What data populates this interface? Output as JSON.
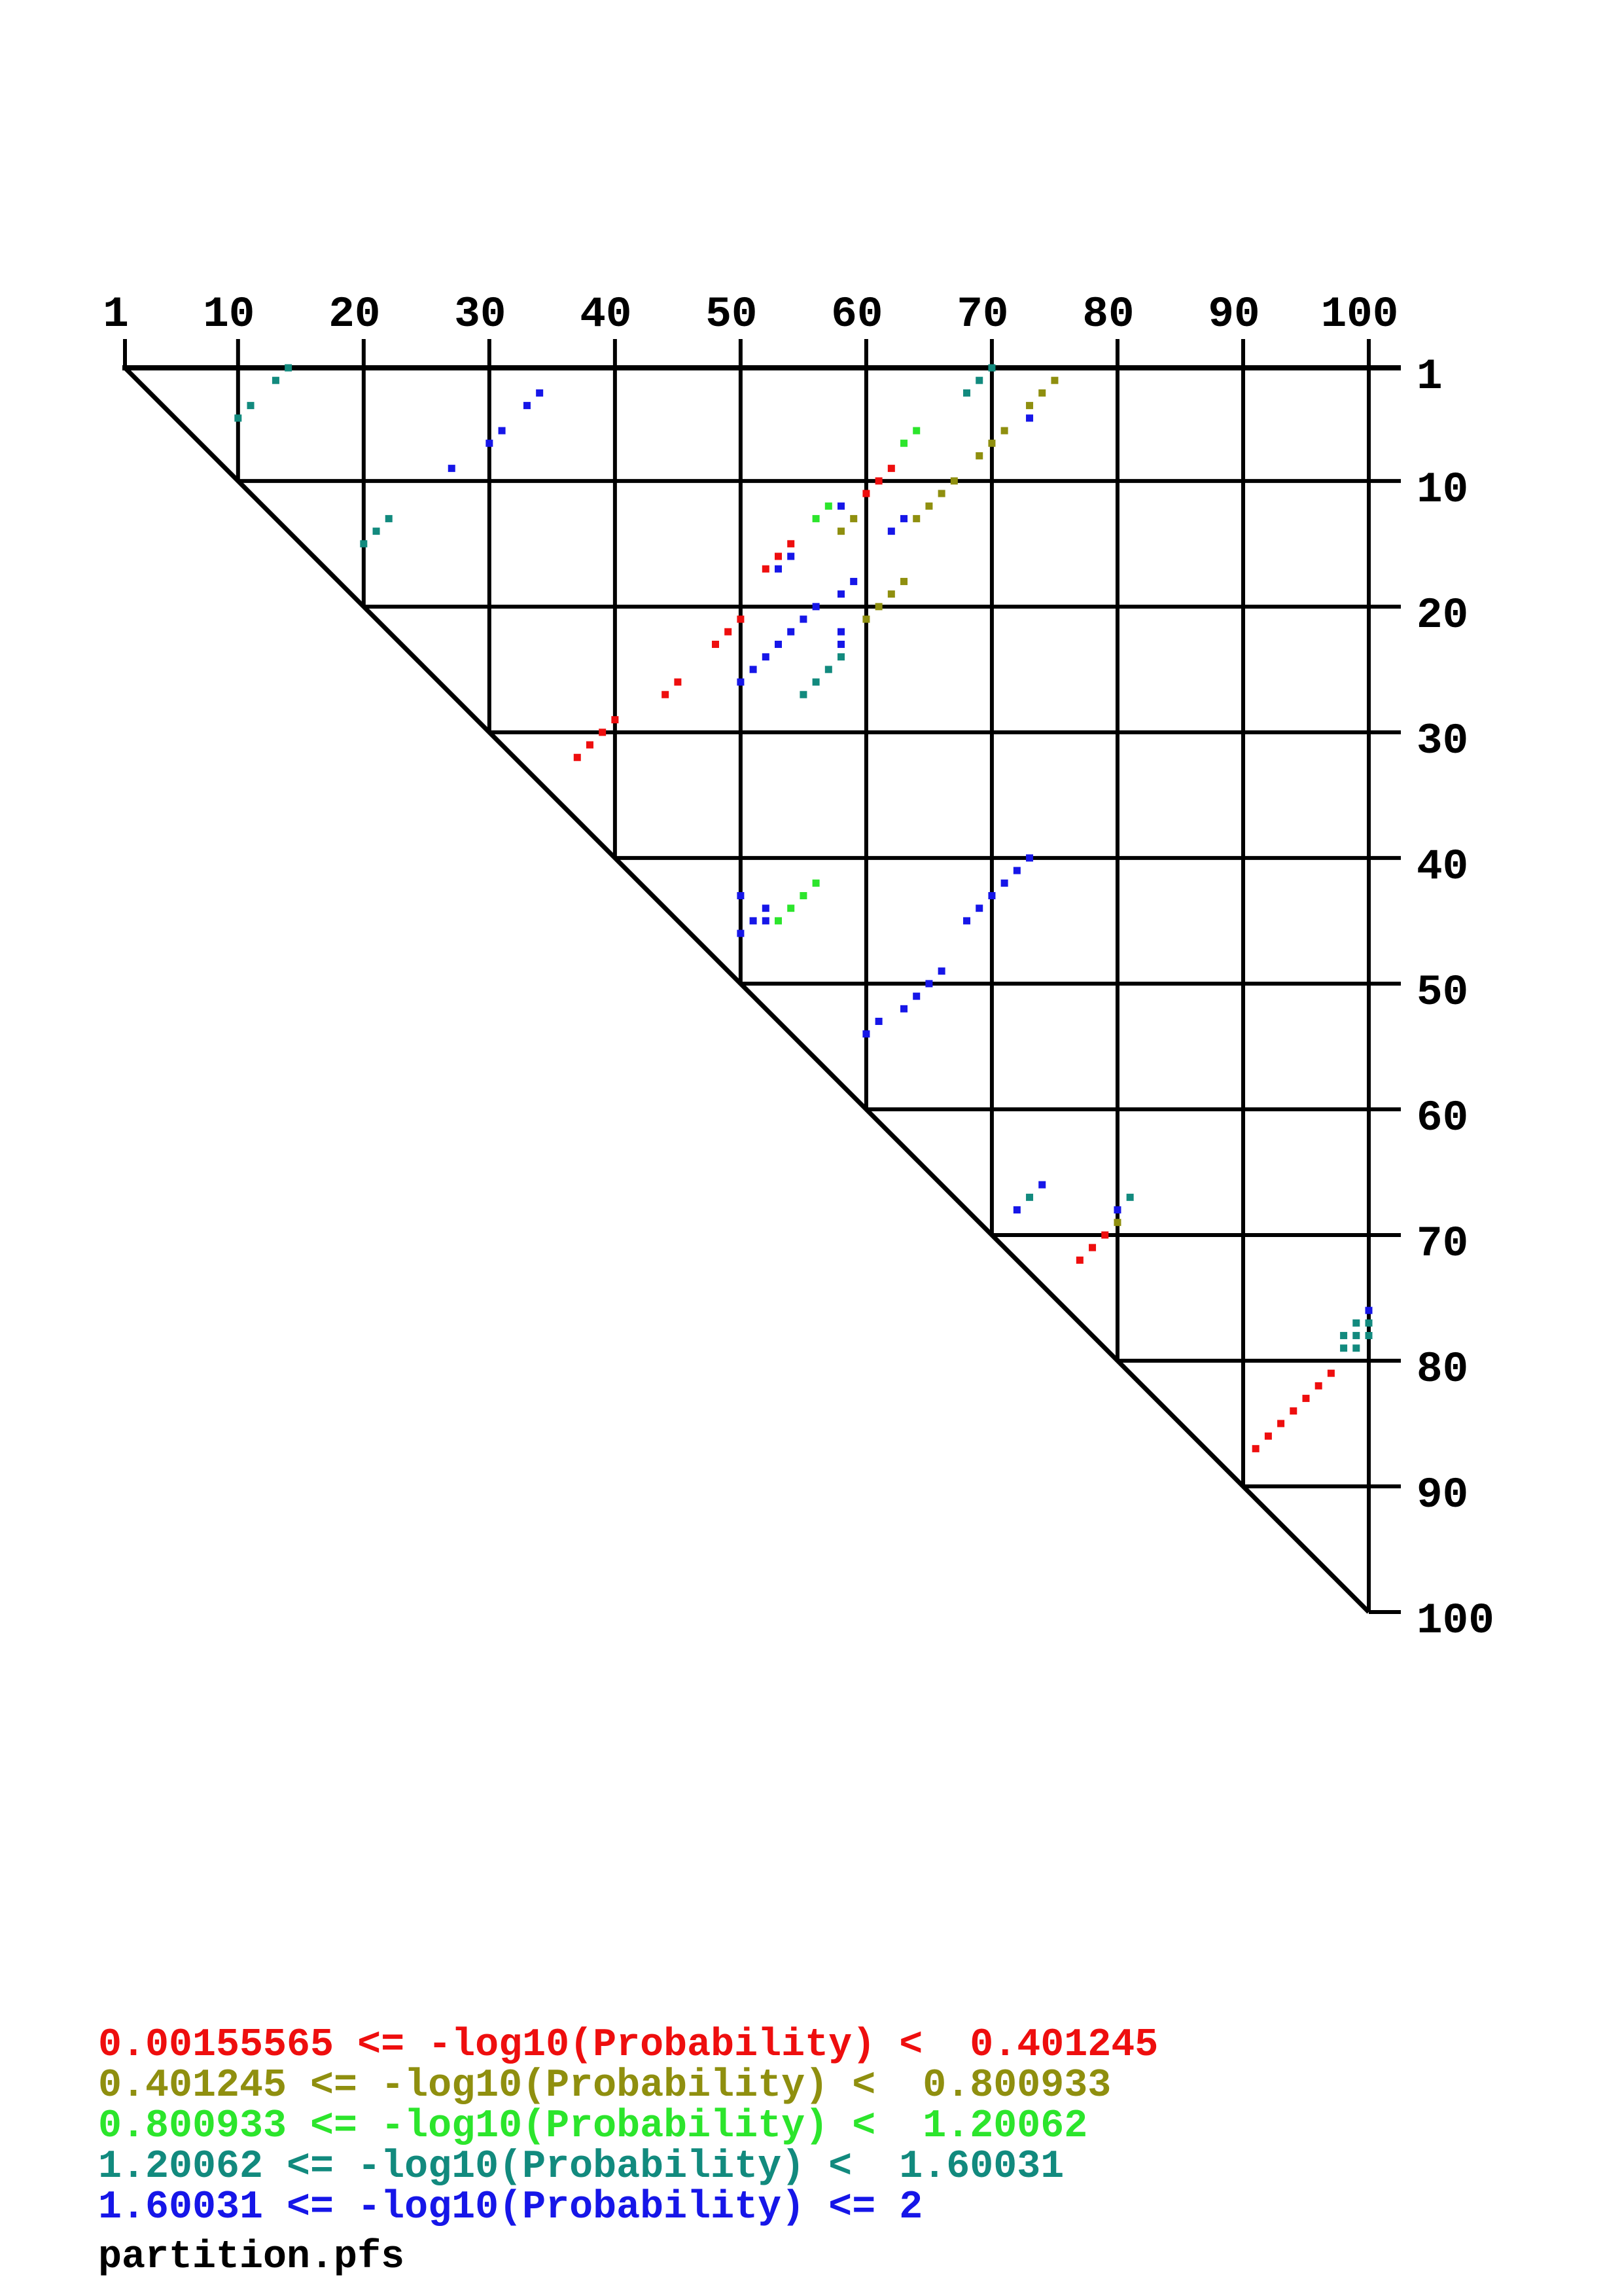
{
  "chart_data": {
    "type": "scatter",
    "subtype": "triangular-dot-plot",
    "title": "",
    "xlabel": "",
    "ylabel": "",
    "x_range": [
      1,
      100
    ],
    "y_range": [
      1,
      100
    ],
    "y_axis_direction": "down",
    "grid": true,
    "grid_positions": [
      1,
      10,
      20,
      30,
      40,
      50,
      60,
      70,
      80,
      90,
      100
    ],
    "x_tick_labels": [
      "1",
      "10",
      "20",
      "30",
      "40",
      "50",
      "60",
      "70",
      "80",
      "90",
      "100"
    ],
    "y_tick_labels": [
      "1",
      "10",
      "20",
      "30",
      "40",
      "50",
      "60",
      "70",
      "80",
      "90",
      "100"
    ],
    "legend_position": "bottom-left",
    "point_format": "[x_position, y_position]",
    "classes": [
      {
        "label": "0.00155565 <= -log10(Probability) <  0.401245",
        "color": "#ee0e0e",
        "points": [
          [
            62,
            9
          ],
          [
            61,
            10
          ],
          [
            60,
            11
          ],
          [
            54,
            15
          ],
          [
            53,
            16
          ],
          [
            52,
            17
          ],
          [
            50,
            21
          ],
          [
            49,
            22
          ],
          [
            48,
            23
          ],
          [
            45,
            26
          ],
          [
            44,
            27
          ],
          [
            40,
            29
          ],
          [
            39,
            30
          ],
          [
            38,
            31
          ],
          [
            37,
            32
          ],
          [
            79,
            70
          ],
          [
            78,
            71
          ],
          [
            77,
            72
          ],
          [
            97,
            81
          ],
          [
            96,
            82
          ],
          [
            95,
            83
          ],
          [
            94,
            84
          ],
          [
            93,
            85
          ],
          [
            92,
            86
          ],
          [
            91,
            87
          ]
        ]
      },
      {
        "label": "0.401245 <= -log10(Probability) <  0.800933",
        "color": "#8f8f0f",
        "points": [
          [
            75,
            2
          ],
          [
            74,
            3
          ],
          [
            73,
            4
          ],
          [
            71,
            6
          ],
          [
            70,
            7
          ],
          [
            69,
            8
          ],
          [
            67,
            10
          ],
          [
            66,
            11
          ],
          [
            65,
            12
          ],
          [
            64,
            13
          ],
          [
            59,
            13
          ],
          [
            58,
            14
          ],
          [
            63,
            18
          ],
          [
            62,
            19
          ],
          [
            61,
            20
          ],
          [
            60,
            21
          ],
          [
            80,
            69
          ]
        ]
      },
      {
        "label": "0.800933 <= -log10(Probability) <  1.20062",
        "color": "#2ce52c",
        "points": [
          [
            64,
            6
          ],
          [
            63,
            7
          ],
          [
            57,
            12
          ],
          [
            56,
            13
          ],
          [
            56,
            42
          ],
          [
            55,
            43
          ],
          [
            54,
            44
          ],
          [
            53,
            45
          ]
        ]
      },
      {
        "label": "1.20062 <= -log10(Probability) <  1.60031",
        "color": "#128a7e",
        "points": [
          [
            14,
            1
          ],
          [
            13,
            2
          ],
          [
            11,
            4
          ],
          [
            10,
            5
          ],
          [
            70,
            1
          ],
          [
            69,
            2
          ],
          [
            68,
            3
          ],
          [
            22,
            13
          ],
          [
            21,
            14
          ],
          [
            20,
            15
          ],
          [
            58,
            24
          ],
          [
            57,
            25
          ],
          [
            56,
            26
          ],
          [
            55,
            27
          ],
          [
            73,
            67
          ],
          [
            81,
            67
          ],
          [
            99,
            77
          ],
          [
            100,
            77
          ],
          [
            98,
            78
          ],
          [
            99,
            78
          ],
          [
            100,
            78
          ],
          [
            98,
            79
          ],
          [
            99,
            79
          ]
        ]
      },
      {
        "label": "1.60031 <= -log10(Probability) <= 2",
        "color": "#1616e8",
        "points": [
          [
            34,
            3
          ],
          [
            33,
            4
          ],
          [
            31,
            6
          ],
          [
            30,
            7
          ],
          [
            27,
            9
          ],
          [
            73,
            5
          ],
          [
            58,
            12
          ],
          [
            63,
            13
          ],
          [
            62,
            14
          ],
          [
            54,
            16
          ],
          [
            53,
            17
          ],
          [
            59,
            18
          ],
          [
            58,
            19
          ],
          [
            56,
            20
          ],
          [
            55,
            21
          ],
          [
            54,
            22
          ],
          [
            53,
            23
          ],
          [
            58,
            22
          ],
          [
            58,
            23
          ],
          [
            52,
            24
          ],
          [
            51,
            25
          ],
          [
            50,
            26
          ],
          [
            73,
            40
          ],
          [
            72,
            41
          ],
          [
            71,
            42
          ],
          [
            70,
            43
          ],
          [
            69,
            44
          ],
          [
            68,
            45
          ],
          [
            66,
            49
          ],
          [
            65,
            50
          ],
          [
            64,
            51
          ],
          [
            63,
            52
          ],
          [
            61,
            53
          ],
          [
            60,
            54
          ],
          [
            50,
            43
          ],
          [
            52,
            44
          ],
          [
            51,
            45
          ],
          [
            52,
            45
          ],
          [
            50,
            46
          ],
          [
            74,
            66
          ],
          [
            72,
            68
          ],
          [
            80,
            68
          ],
          [
            100,
            76
          ]
        ]
      }
    ],
    "file_label": "partition.pfs"
  }
}
